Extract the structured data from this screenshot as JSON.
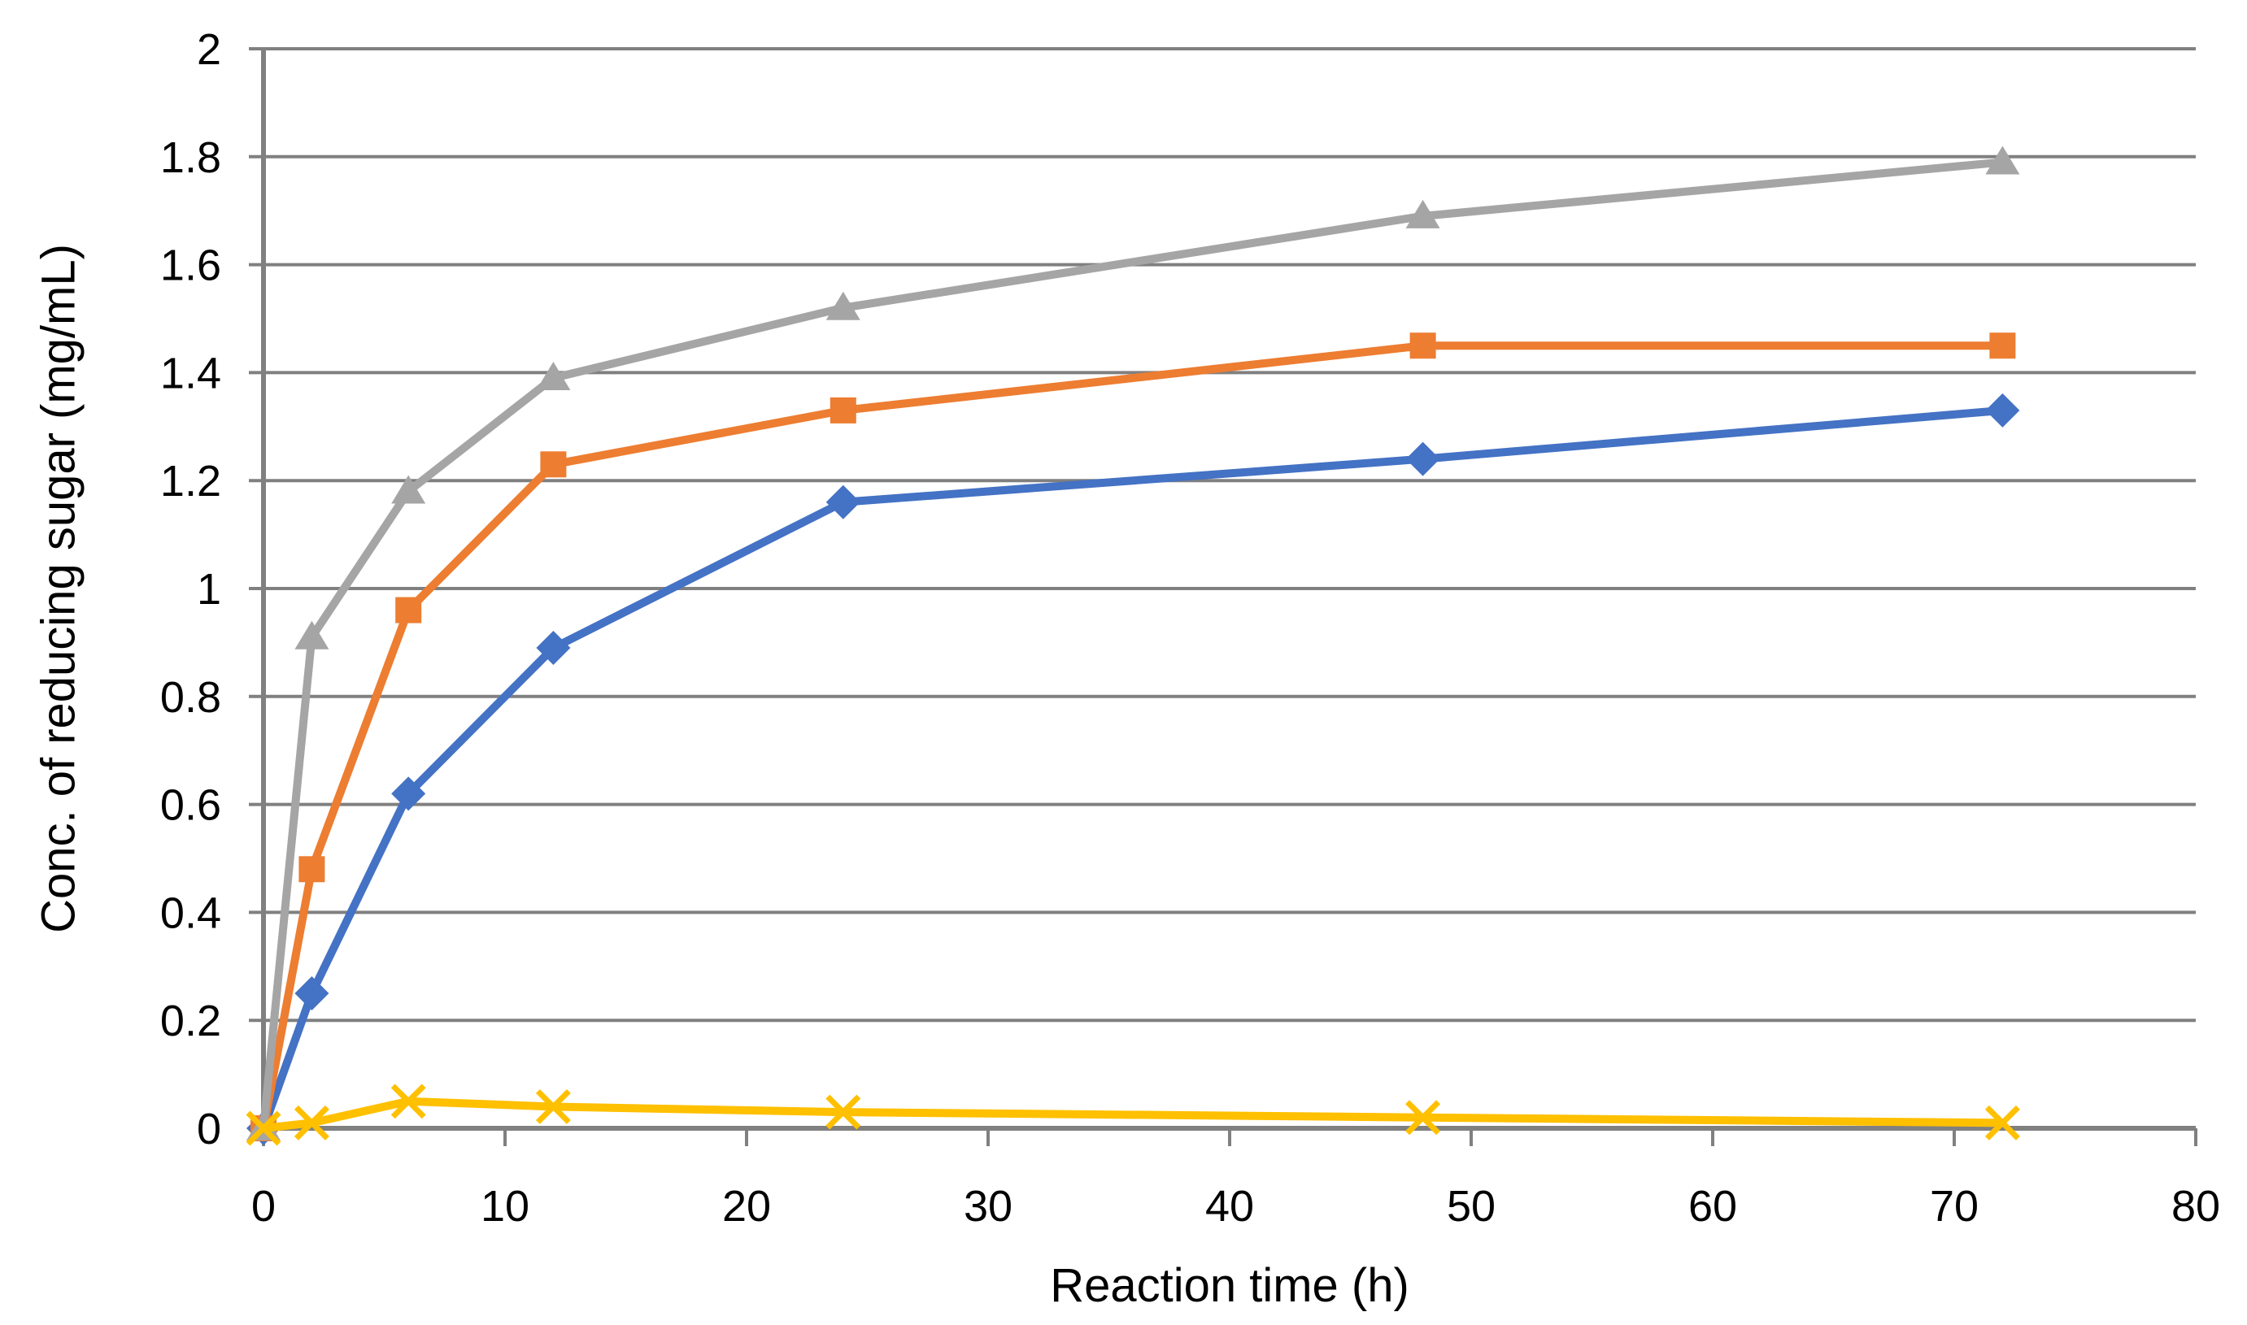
{
  "chart_data": {
    "type": "line",
    "title": "",
    "xlabel": "Reaction time (h)",
    "ylabel": "Conc. of  reducing sugar (mg/mL)",
    "xlim": [
      0,
      80
    ],
    "ylim": [
      0,
      2
    ],
    "grid": "horizontal-only",
    "legend": "none",
    "x": [
      0,
      2,
      6,
      12,
      24,
      48,
      72
    ],
    "series": [
      {
        "name": "blue-diamond-series",
        "marker": "diamond",
        "color": "#4472C4",
        "values": [
          0,
          0.25,
          0.62,
          0.89,
          1.16,
          1.24,
          1.33
        ]
      },
      {
        "name": "orange-square-series",
        "marker": "square",
        "color": "#ED7D31",
        "values": [
          0,
          0.48,
          0.96,
          1.23,
          1.33,
          1.45,
          1.45
        ]
      },
      {
        "name": "gray-triangle-series",
        "marker": "triangle",
        "color": "#A5A5A5",
        "values": [
          0,
          0.91,
          1.18,
          1.39,
          1.52,
          1.69,
          1.79
        ]
      },
      {
        "name": "yellow-x-series",
        "marker": "x",
        "color": "#FFC000",
        "values": [
          0,
          0.01,
          0.05,
          0.04,
          0.03,
          0.02,
          0.01
        ]
      }
    ],
    "x_ticks": [
      {
        "value": 0,
        "label": "0"
      },
      {
        "value": 10,
        "label": "10"
      },
      {
        "value": 20,
        "label": "20"
      },
      {
        "value": 30,
        "label": "30"
      },
      {
        "value": 40,
        "label": "40"
      },
      {
        "value": 50,
        "label": "50"
      },
      {
        "value": 60,
        "label": "60"
      },
      {
        "value": 70,
        "label": "70"
      },
      {
        "value": 80,
        "label": "80"
      }
    ],
    "y_ticks": [
      {
        "value": 0,
        "label": "0"
      },
      {
        "value": 0.2,
        "label": "0.2"
      },
      {
        "value": 0.4,
        "label": "0.4"
      },
      {
        "value": 0.6,
        "label": "0.6"
      },
      {
        "value": 0.8,
        "label": "0.8"
      },
      {
        "value": 1,
        "label": "1"
      },
      {
        "value": 1.2,
        "label": "1.2"
      },
      {
        "value": 1.4,
        "label": "1.4"
      },
      {
        "value": 1.6,
        "label": "1.6"
      },
      {
        "value": 1.8,
        "label": "1.8"
      },
      {
        "value": 2,
        "label": "2"
      }
    ],
    "colors": {
      "gridline": "#808080",
      "axis_line": "#808080",
      "tick_text": "#000000",
      "title_text": "#000000"
    }
  }
}
